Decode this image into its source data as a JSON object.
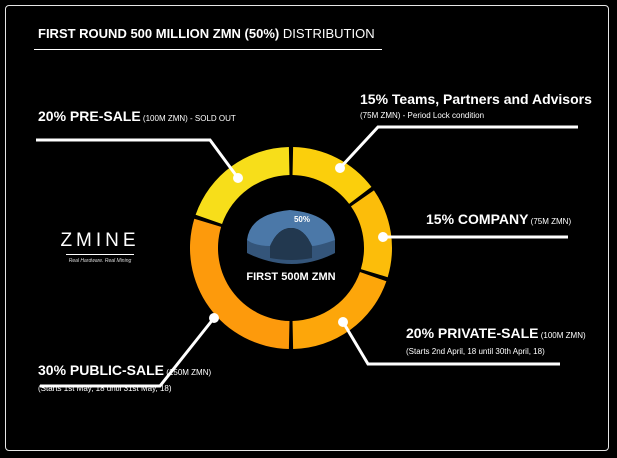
{
  "title": {
    "bold": "FIRST ROUND 500 MILLION ZMN (50%)",
    "rest": " DISTRIBUTION"
  },
  "logo": {
    "text": "ZMINE",
    "tagline": "Real Hardware. Real Mining"
  },
  "center": {
    "label": "FIRST 500M ZMN",
    "badge": "50%"
  },
  "labels": {
    "presale": {
      "head": "20% PRE-SALE",
      "small": " (100M ZMN) - SOLD OUT"
    },
    "teams": {
      "head": "15% Teams, Partners and Advisors",
      "sub": "(75M ZMN) - Period Lock condition"
    },
    "company": {
      "head": "15% COMPANY",
      "small": " (75M ZMN)"
    },
    "private": {
      "head": "20% PRIVATE-SALE",
      "small": " (100M ZMN)",
      "sub": "(Starts 2nd April, 18 until 30th April, 18)"
    },
    "public": {
      "head": "30% PUBLIC-SALE",
      "small": " (150M ZMN)",
      "sub": "(Starts 1st May, 18 until 31st May, 18)"
    }
  },
  "chart_data": {
    "type": "pie",
    "title": "FIRST ROUND 500 MILLION ZMN (50%) DISTRIBUTION",
    "unit": "M ZMN",
    "slices": [
      {
        "name": "PRE-SALE",
        "percent": 20,
        "value": 100,
        "color": "#f7de1a"
      },
      {
        "name": "Teams, Partners and Advisors",
        "percent": 15,
        "value": 75,
        "color": "#fbcf0c"
      },
      {
        "name": "COMPANY",
        "percent": 15,
        "value": 75,
        "color": "#fcbd0a"
      },
      {
        "name": "PRIVATE-SALE",
        "percent": 20,
        "value": 100,
        "color": "#fda60a"
      },
      {
        "name": "PUBLIC-SALE",
        "percent": 30,
        "value": 150,
        "color": "#fd9a0c"
      }
    ]
  }
}
